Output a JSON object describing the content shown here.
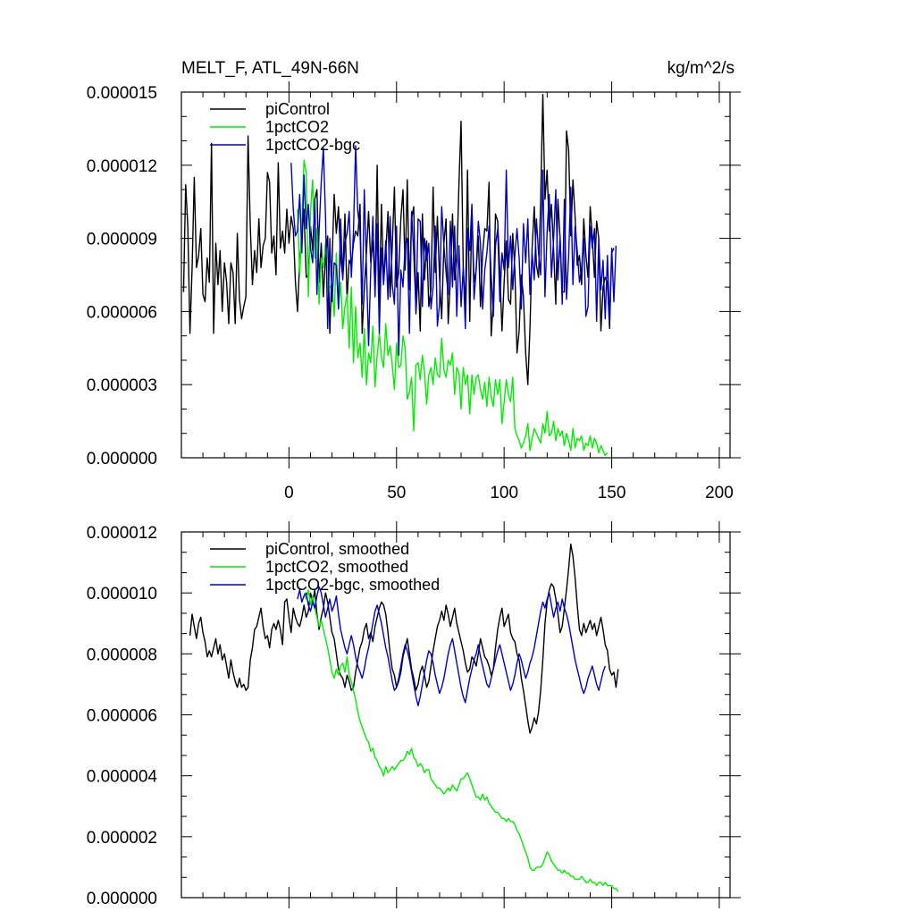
{
  "colors": {
    "piControl": "#000000",
    "1pctCO2": "#00ee00",
    "1pctCO2-bgc": "#0000cc"
  },
  "chart_data": [
    {
      "type": "line",
      "title": "MELT_F, ATL_49N-66N",
      "units": "kg/m^2/s",
      "xlim": [
        -50,
        205
      ],
      "ylim": [
        0,
        1.5e-05
      ],
      "xticks": [
        0,
        50,
        100,
        150,
        200
      ],
      "xtick_labels": [
        "0",
        "50",
        "100",
        "150",
        "200"
      ],
      "yticks": [
        0,
        3e-06,
        6e-06,
        9e-06,
        1.2e-05,
        1.5e-05
      ],
      "ytick_labels": [
        "0.000000",
        "0.000003",
        "0.000006",
        "0.000009",
        "0.000012",
        "0.000015"
      ],
      "legend": {
        "position": "top-left",
        "entries": [
          "piControl",
          "1pctCO2",
          "1pctCO2-bgc"
        ]
      },
      "series": [
        {
          "name": "piControl",
          "color": "#000000",
          "x_start": -49,
          "x_step": 1,
          "y": [
            6.8,
            11.2,
            9.5,
            5.1,
            7.8,
            11.5,
            7.8,
            8.3,
            9.4,
            6.7,
            6.4,
            8.2,
            7.2,
            12.9,
            5.1,
            8.8,
            7.1,
            8.5,
            6.0,
            8.0,
            7.2,
            5.5,
            8.0,
            7.6,
            5.5,
            9.2,
            6.5,
            5.7,
            6.2,
            6.6,
            13.2,
            9.5,
            7.1,
            8.5,
            7.6,
            9.8,
            7.8,
            8.7,
            9.0,
            11.7,
            11.3,
            8.4,
            9.1,
            7.5,
            12.1,
            8.6,
            9.3,
            8.4,
            10.2,
            8.8,
            9.9,
            9.4,
            7.2,
            6.0,
            8.1,
            9.0,
            10.2,
            7.4,
            7.5,
            9.5,
            8.5,
            10.6,
            11.0,
            7.2,
            8.8,
            6.6,
            8.3,
            9.1,
            5.1,
            7.9,
            10.8,
            9.2,
            10.3,
            8.2,
            7.4,
            10.0,
            6.5,
            8.1,
            7.9,
            8.8,
            9.3,
            9.1,
            10.4,
            5.1,
            6.9,
            8.4,
            10.1,
            8.0,
            8.9,
            7.0,
            12.0,
            6.2,
            10.4,
            7.2,
            8.4,
            10.1,
            6.6,
            8.7,
            11.1,
            7.0,
            7.6,
            9.8,
            11.0,
            7.7,
            11.4,
            6.9,
            9.8,
            10.3,
            5.9,
            7.6,
            5.2,
            10.0,
            7.3,
            8.9,
            6.2,
            6.9,
            11.1,
            7.6,
            9.9,
            7.4,
            5.7,
            8.8,
            9.8,
            5.5,
            7.3,
            10.0,
            7.3,
            8.1,
            11.2,
            13.8,
            7.8,
            6.2,
            11.8,
            5.6,
            10.3,
            7.2,
            7.7,
            9.1,
            6.2,
            8.4,
            9.4,
            9.3,
            11.3,
            5.0,
            6.4,
            10.0,
            9.7,
            7.6,
            5.2,
            7.2,
            8.9,
            6.5,
            6.3,
            9.2,
            7.7,
            4.3,
            5.2,
            7.5,
            6.6,
            4.3,
            3.0,
            5.3,
            8.6,
            10.3,
            7.9,
            7.4,
            10.6,
            14.9,
            10.6,
            11.8,
            9.3,
            10.4,
            8.5,
            6.3,
            10.6,
            9.0,
            6.8,
            6.8,
            13.4,
            12.6,
            9.1,
            11.4,
            9.9,
            7.9,
            8.3,
            7.1,
            9.8,
            8.3,
            7.4,
            10.3,
            9.0,
            7.4,
            9.7,
            9.0,
            5.2,
            7.0,
            7.4,
            7.2,
            5.3,
            8.4,
            8.6
          ]
        },
        {
          "name": "1pctCO2",
          "color": "#00ee00",
          "x_start": 4,
          "x_step": 1,
          "y": [
            10.2,
            7.5,
            9.6,
            12.2,
            11.7,
            6.6,
            10.1,
            11.4,
            8.2,
            9.4,
            6.3,
            8.2,
            7.8,
            8.8,
            6.8,
            7.0,
            7.1,
            5.8,
            8.4,
            6.1,
            7.2,
            5.3,
            6.2,
            6.7,
            4.5,
            7.0,
            3.9,
            6.2,
            4.1,
            4.7,
            3.3,
            5.3,
            3.0,
            4.3,
            3.9,
            5.4,
            2.9,
            4.2,
            5.1,
            4.1,
            3.7,
            5.5,
            4.2,
            4.6,
            3.8,
            2.8,
            4.7,
            3.7,
            3.8,
            5.0,
            4.5,
            2.4,
            2.7,
            3.3,
            1.1,
            3.8,
            3.9,
            3.2,
            4.2,
            3.5,
            2.2,
            3.4,
            3.7,
            3.0,
            4.1,
            3.4,
            3.3,
            4.9,
            3.6,
            3.3,
            4.0,
            3.8,
            4.3,
            2.6,
            3.7,
            3.5,
            2.0,
            3.7,
            3.0,
            3.4,
            1.8,
            3.4,
            2.6,
            3.3,
            3.4,
            2.8,
            2.4,
            3.1,
            2.1,
            3.3,
            2.5,
            2.1,
            3.2,
            2.6,
            3.2,
            1.4,
            2.3,
            3.2,
            2.6,
            2.3,
            3.3,
            1.2,
            0.9,
            0.7,
            0.4,
            0.6,
            0.9,
            1.4,
            0.3,
            0.8,
            1.2,
            1.0,
            0.8,
            0.6,
            1.4,
            1.0,
            1.9,
            0.9,
            1.0,
            1.5,
            0.7,
            1.2,
            0.9,
            1.1,
            0.5,
            1.0,
            0.7,
            0.3,
            1.2,
            0.4,
            0.8,
            0.7,
            0.9,
            0.3,
            0.6,
            0.5,
            0.9,
            0.4,
            0.8,
            0.6,
            0.2,
            0.5,
            0.3,
            0.1,
            0.2
          ]
        },
        {
          "name": "1pctCO2-bgc",
          "color": "#0000cc",
          "x_start": 1,
          "x_step": 1,
          "y": [
            12.1,
            10.2,
            9.1,
            9.3,
            10.8,
            8.4,
            11.6,
            9.4,
            10.4,
            8.6,
            8.0,
            10.6,
            6.7,
            9.3,
            11.3,
            12.7,
            9.9,
            5.3,
            9.0,
            6.4,
            8.0,
            7.9,
            6.1,
            9.8,
            7.3,
            8.8,
            9.2,
            10.1,
            7.4,
            9.3,
            12.8,
            10.1,
            9.3,
            6.3,
            11.0,
            7.8,
            4.6,
            7.7,
            9.9,
            6.6,
            9.6,
            5.1,
            8.6,
            7.1,
            8.9,
            6.5,
            9.9,
            7.1,
            6.3,
            9.5,
            4.2,
            7.7,
            7.0,
            8.7,
            9.0,
            5.1,
            10.1,
            8.4,
            6.1,
            9.8,
            9.7,
            6.2,
            9.0,
            8.1,
            8.8,
            6.1,
            7.0,
            9.5,
            5.4,
            6.3,
            10.3,
            8.7,
            7.6,
            6.7,
            9.7,
            7.0,
            9.5,
            5.8,
            8.7,
            6.2,
            7.8,
            5.3,
            9.4,
            8.5,
            10.4,
            6.5,
            7.7,
            9.7,
            8.8,
            6.1,
            7.7,
            8.4,
            9.5,
            7.5,
            5.8,
            8.7,
            9.4,
            6.4,
            8.4,
            7.7,
            11.8,
            7.8,
            9.1,
            6.9,
            8.3,
            9.4,
            8.2,
            6.1,
            9.6,
            8.0,
            9.8,
            6.7,
            8.4,
            7.3,
            9.8,
            8.4,
            7.5,
            11.8,
            6.6,
            9.3,
            10.8,
            7.4,
            9.0,
            11.0,
            7.3,
            9.1,
            6.3,
            10.6,
            6.5,
            8.3,
            11.1,
            7.1,
            9.5,
            8.5,
            7.2,
            7.8,
            9.0,
            5.8,
            6.2,
            9.5,
            8.6,
            9.4,
            5.6,
            9.0,
            6.9,
            8.1,
            5.7,
            8.3,
            5.6,
            8.6,
            6.4,
            8.7
          ]
        }
      ]
    },
    {
      "type": "line",
      "title": "",
      "xlim": [
        -50,
        205
      ],
      "ylim": [
        0,
        1.2e-05
      ],
      "xticks": [
        0,
        50,
        100,
        150,
        200
      ],
      "xtick_labels": [],
      "yticks": [
        0,
        2e-06,
        4e-06,
        6e-06,
        8e-06,
        1e-05,
        1.2e-05
      ],
      "ytick_labels": [
        "0.000000",
        "0.000002",
        "0.000004",
        "0.000006",
        "0.000008",
        "0.000010",
        "0.000012"
      ],
      "legend": {
        "position": "top-left",
        "entries": [
          "piControl, smoothed",
          "1pctCO2, smoothed",
          "1pctCO2-bgc, smoothed"
        ]
      },
      "series": [
        {
          "name": "piControl, smoothed",
          "color": "#000000",
          "x_start": -46,
          "x_step": 1,
          "y": [
            8.6,
            9.3,
            8.9,
            8.5,
            9.0,
            9.2,
            8.7,
            8.4,
            7.9,
            8.1,
            7.9,
            8.2,
            8.5,
            8.0,
            8.3,
            7.8,
            8.0,
            7.6,
            7.2,
            7.8,
            7.4,
            7.1,
            6.9,
            7.2,
            6.9,
            7.0,
            6.8,
            6.9,
            7.8,
            8.2,
            8.8,
            8.9,
            9.2,
            9.5,
            8.9,
            8.5,
            8.6,
            8.2,
            8.8,
            9.0,
            8.8,
            9.1,
            8.8,
            8.3,
            9.7,
            9.8,
            9.2,
            8.7,
            9.5,
            9.2,
            9.0,
            8.9,
            9.2,
            9.6,
            9.2,
            9.4,
            10.0,
            9.7,
            10.1,
            9.3,
            8.8,
            9.2,
            9.5,
            10.0,
            9.7,
            9.2,
            8.7,
            8.5,
            8.0,
            7.5,
            7.3,
            7.2,
            6.9,
            7.3,
            7.1,
            6.8,
            6.9,
            7.4,
            7.8,
            8.2,
            8.4,
            8.8,
            9.0,
            8.5,
            8.7,
            8.4,
            8.9,
            9.2,
            9.5,
            9.7,
            9.6,
            9.3,
            8.7,
            8.0,
            7.5,
            7.3,
            6.9,
            7.1,
            7.4,
            7.9,
            8.2,
            8.5,
            8.0,
            7.5,
            7.2,
            6.8,
            7.0,
            7.4,
            7.6,
            7.3,
            6.9,
            7.1,
            7.6,
            8.1,
            8.5,
            8.9,
            9.1,
            9.4,
            9.1,
            9.6,
            9.3,
            8.9,
            9.2,
            9.5,
            9.0,
            8.7,
            8.4,
            8.1,
            7.7,
            7.4,
            7.5,
            7.9,
            7.8,
            7.6,
            8.0,
            8.5,
            8.2,
            7.9,
            7.8,
            7.6,
            7.3,
            7.5,
            8.2,
            8.8,
            9.2,
            9.5,
            8.9,
            9.1,
            9.3,
            8.7,
            8.5,
            8.4,
            8.0,
            7.8,
            7.2,
            6.8,
            6.3,
            5.8,
            5.4,
            5.6,
            5.9,
            5.7,
            6.1,
            6.8,
            7.8,
            9.0,
            9.7,
            10.1,
            10.3,
            10.2,
            9.8,
            9.3,
            8.7,
            8.9,
            9.5,
            10.1,
            10.8,
            11.6,
            11.2,
            10.5,
            9.6,
            8.8,
            8.6,
            9.0,
            8.7,
            8.9,
            9.1,
            8.8,
            9.0,
            8.6,
            8.9,
            9.2,
            8.8,
            8.3,
            8.1,
            7.5,
            7.3,
            7.4,
            6.9,
            7.5
          ]
        },
        {
          "name": "1pctCO2, smoothed",
          "color": "#00ee00",
          "x_start": 7,
          "x_step": 1,
          "y": [
            10.0,
            9.8,
            10.1,
            9.6,
            9.9,
            9.5,
            9.2,
            8.9,
            9.1,
            8.8,
            8.5,
            8.2,
            7.8,
            7.4,
            7.2,
            7.5,
            7.3,
            7.6,
            7.7,
            7.4,
            7.9,
            7.3,
            7.1,
            6.8,
            6.5,
            6.1,
            5.8,
            5.6,
            5.4,
            5.2,
            5.1,
            4.8,
            4.9,
            4.6,
            4.5,
            4.3,
            4.2,
            4.0,
            4.3,
            4.1,
            4.2,
            4.3,
            4.2,
            4.3,
            4.4,
            4.5,
            4.5,
            4.6,
            4.8,
            4.7,
            4.9,
            4.6,
            4.5,
            4.3,
            4.4,
            4.3,
            4.1,
            4.2,
            4.2,
            3.9,
            3.8,
            3.7,
            3.6,
            3.6,
            3.5,
            3.4,
            3.5,
            3.6,
            3.5,
            3.7,
            3.6,
            3.5,
            3.7,
            3.9,
            3.9,
            4.0,
            4.1,
            3.9,
            3.7,
            3.5,
            3.3,
            3.3,
            3.2,
            3.4,
            3.2,
            3.3,
            3.1,
            3.0,
            2.9,
            2.8,
            2.8,
            2.7,
            2.6,
            2.6,
            2.5,
            2.6,
            2.5,
            2.5,
            2.4,
            2.2,
            2.1,
            1.9,
            1.7,
            1.5,
            1.3,
            1.0,
            0.9,
            0.9,
            1.0,
            1.0,
            1.0,
            1.1,
            1.3,
            1.5,
            1.4,
            1.2,
            1.1,
            1.0,
            0.9,
            0.9,
            0.8,
            0.9,
            0.8,
            0.8,
            0.7,
            0.7,
            0.6,
            0.6,
            0.6,
            0.7,
            0.6,
            0.5,
            0.5,
            0.6,
            0.5,
            0.5,
            0.4,
            0.5,
            0.5,
            0.4,
            0.5,
            0.4,
            0.4,
            0.4,
            0.3,
            0.3,
            0.2
          ]
        },
        {
          "name": "1pctCO2-bgc, smoothed",
          "color": "#0000cc",
          "x_start": 4,
          "x_step": 1,
          "y": [
            9.8,
            10.1,
            9.7,
            9.9,
            10.0,
            9.6,
            9.4,
            9.7,
            9.5,
            9.9,
            10.2,
            10.0,
            9.6,
            9.2,
            9.5,
            9.8,
            9.4,
            9.6,
            9.9,
            9.3,
            8.8,
            8.5,
            8.2,
            8.0,
            8.3,
            8.6,
            8.3,
            7.9,
            7.6,
            7.4,
            7.2,
            7.5,
            7.9,
            8.2,
            8.6,
            9.0,
            9.4,
            9.6,
            9.3,
            9.0,
            8.6,
            8.2,
            7.9,
            7.5,
            7.1,
            6.8,
            6.9,
            7.2,
            7.6,
            8.0,
            8.3,
            8.1,
            7.8,
            7.4,
            7.0,
            6.6,
            6.3,
            6.6,
            7.0,
            7.4,
            7.8,
            8.1,
            8.0,
            7.7,
            7.3,
            7.0,
            6.7,
            6.9,
            7.2,
            7.6,
            8.0,
            8.3,
            8.5,
            8.1,
            7.7,
            7.3,
            6.9,
            6.6,
            6.4,
            6.8,
            7.2,
            7.5,
            7.8,
            8.0,
            8.3,
            7.9,
            7.6,
            7.3,
            7.0,
            6.9,
            7.2,
            7.5,
            7.8,
            8.1,
            8.3,
            8.0,
            7.7,
            7.4,
            7.1,
            6.8,
            7.0,
            7.3,
            7.7,
            8.0,
            7.8,
            7.5,
            7.2,
            7.4,
            7.7,
            7.9,
            8.2,
            8.6,
            9.0,
            9.4,
            9.7,
            9.5,
            9.8,
            10.0,
            9.6,
            9.2,
            9.5,
            9.7,
            9.4,
            9.8,
            9.5,
            9.3,
            9.0,
            8.6,
            8.2,
            7.8,
            7.5,
            7.2,
            6.9,
            6.7,
            6.9,
            7.2,
            7.4,
            7.6,
            7.3,
            7.0,
            6.8,
            7.1,
            7.4,
            7.6
          ]
        }
      ]
    }
  ]
}
